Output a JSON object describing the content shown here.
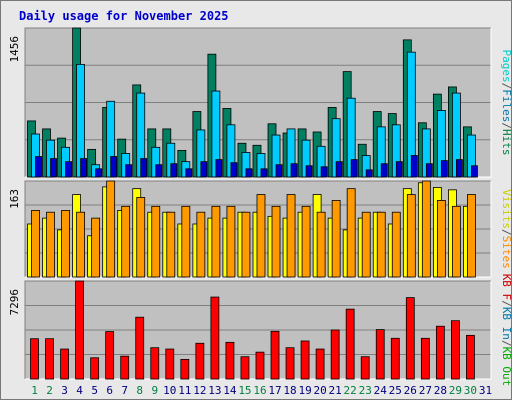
{
  "chart_data": {
    "title": "Daily usage for November 2025",
    "type": "bar",
    "days": [
      "1",
      "2",
      "3",
      "4",
      "5",
      "6",
      "7",
      "8",
      "9",
      "10",
      "11",
      "12",
      "13",
      "14",
      "15",
      "16",
      "17",
      "18",
      "19",
      "20",
      "21",
      "22",
      "23",
      "24",
      "25",
      "26",
      "27",
      "28",
      "29",
      "30",
      "31"
    ],
    "weekend_days": [
      "1",
      "2",
      "8",
      "9",
      "15",
      "16",
      "22",
      "23",
      "29",
      "30"
    ],
    "panels": [
      {
        "name": "hits-files-pages",
        "ymax_label": "1456",
        "ymax": 1456,
        "legend": [
          {
            "text": "Pages",
            "color": "#00cccc"
          },
          {
            "text": "/",
            "color": "#555555"
          },
          {
            "text": "Files",
            "color": "#0077aa"
          },
          {
            "text": "/",
            "color": "#555555"
          },
          {
            "text": "Hits",
            "color": "#008040"
          }
        ],
        "series": [
          {
            "name": "Hits",
            "color": "#008060",
            "values": [
              548,
              470,
              380,
              1456,
              270,
              680,
              370,
              900,
              470,
              470,
              260,
              640,
              1200,
              670,
              330,
              310,
              520,
              430,
              470,
              440,
              680,
              1030,
              320,
              640,
              620,
              1340,
              530,
              810,
              880,
              490,
              0
            ]
          },
          {
            "name": "Files",
            "color": "#00ccff",
            "values": [
              420,
              360,
              290,
              1100,
              120,
              740,
              230,
              820,
              290,
              330,
              150,
              460,
              840,
              510,
              240,
              230,
              410,
              470,
              360,
              300,
              570,
              770,
              210,
              490,
              510,
              1220,
              470,
              650,
              820,
              410,
              0
            ]
          },
          {
            "name": "Pages",
            "color": "#0000cc",
            "values": [
              200,
              180,
              150,
              180,
              80,
              200,
              120,
              180,
              120,
              130,
              80,
              150,
              170,
              140,
              80,
              80,
              120,
              130,
              110,
              100,
              150,
              170,
              70,
              130,
              150,
              210,
              130,
              160,
              170,
              110,
              0
            ]
          }
        ]
      },
      {
        "name": "visits-sites",
        "ymax_label": "163",
        "ymax": 163,
        "legend": [
          {
            "text": "Visits",
            "color": "#cccc00"
          },
          {
            "text": "/",
            "color": "#555555"
          },
          {
            "text": "Sites",
            "color": "#ff8800"
          }
        ],
        "series": [
          {
            "name": "Visits",
            "color": "#ffff00",
            "values": [
              90,
              100,
              80,
              140,
              70,
              153,
              113,
              150,
              110,
              110,
              90,
              90,
              100,
              100,
              110,
              110,
              103,
              100,
              110,
              140,
              100,
              80,
              100,
              110,
              90,
              150,
              160,
              152,
              148,
              120,
              0
            ]
          },
          {
            "name": "Sites",
            "color": "#ff9900",
            "values": [
              113,
              110,
              113,
              110,
              100,
              163,
              120,
              135,
              120,
              110,
              120,
              110,
              120,
              120,
              110,
              140,
              120,
              140,
              120,
              110,
              130,
              150,
              110,
              110,
              110,
              140,
              163,
              130,
              120,
              140,
              0
            ]
          }
        ]
      },
      {
        "name": "kbytes",
        "ymax_label": "7296",
        "ymax": 7296,
        "legend": [
          {
            "text": "KB F",
            "color": "#cc0000"
          },
          {
            "text": "/",
            "color": "#555555"
          },
          {
            "text": "KB In",
            "color": "#0077aa"
          },
          {
            "text": "/",
            "color": "#555555"
          },
          {
            "text": "KB Out",
            "color": "#00aa00"
          }
        ],
        "series": [
          {
            "name": "KB F",
            "color": "#ff0000",
            "values": [
              3000,
              3000,
              2230,
              7296,
              1580,
              3530,
              1700,
              4600,
              2330,
              2230,
              1460,
              2660,
              6100,
              2730,
              1660,
              2000,
              3550,
              2330,
              2830,
              2230,
              3650,
              5200,
              1660,
              3680,
              3030,
              6060,
              3030,
              3930,
              4340,
              3250,
              0
            ]
          }
        ]
      }
    ]
  }
}
